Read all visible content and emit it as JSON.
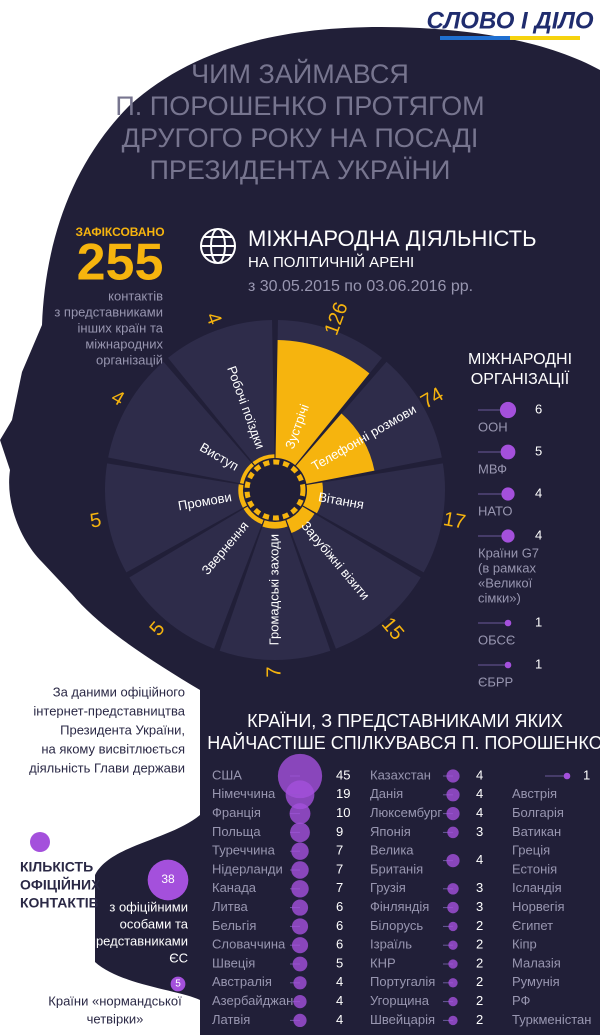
{
  "header": {
    "logo": "СЛОВО І ДІЛО",
    "title": [
      "ЧИМ ЗАЙМАВСЯ",
      "П. ПОРОШЕНКО ПРОТЯГОМ",
      "ДРУГОГО РОКУ НА ПОСАДІ",
      "ПРЕЗИДЕНТА УКРАЇНИ"
    ]
  },
  "summary": {
    "label": "ЗАФІКСОВАНО",
    "total": 255,
    "description": [
      "контактів",
      "з представниками",
      "інших країн та",
      "міжнародних",
      "організацій"
    ]
  },
  "chart_data": [
    {
      "type": "radial-bar",
      "title": "МІЖНАРОДНА ДІЯЛЬНІСТЬ",
      "subtitle": "НА ПОЛІТИЧНІЙ АРЕНІ",
      "period": "з 30.05.2015 по 03.06.2016 рр.",
      "categories": [
        "Зустрічі",
        "Телефонні розмови",
        "Вітання",
        "Зарубіжні візити",
        "Громадські заходи",
        "Звернення",
        "Промови",
        "Виступ",
        "Робочі поїздки"
      ],
      "values": [
        126,
        74,
        17,
        15,
        7,
        5,
        5,
        4,
        4
      ],
      "color": "#f6b40e"
    },
    {
      "type": "bubble-list",
      "title": [
        "МІЖНАРОДНІ",
        "ОРГАНІЗАЦІЇ"
      ],
      "categories": [
        [
          "ООН"
        ],
        [
          "МВФ"
        ],
        [
          "НАТО"
        ],
        [
          "Країни G7",
          "(в рамках",
          "«Великої",
          "сімки»)"
        ],
        [
          "ОБСЄ"
        ],
        [
          "ЄБРР"
        ]
      ],
      "values": [
        6,
        5,
        4,
        4,
        1,
        1
      ],
      "color": "#a450dc"
    },
    {
      "type": "bubble-columns",
      "title": [
        "КРАЇНИ, З ПРЕДСТАВНИКАМИ ЯКИХ",
        "НАЙЧАСТІШЕ СПІЛКУВАВСЯ П. ПОРОШЕНКО"
      ],
      "color": "#a450dc",
      "columns": [
        {
          "categories": [
            "США",
            "Німеччина",
            "Франція",
            "Польща",
            "Туреччина",
            "Нідерланди",
            "Канада",
            "Литва",
            "Бельгія",
            "Словаччина",
            "Швеція",
            "Австралія",
            "Азербайджан",
            "Латвія"
          ],
          "values": [
            45,
            19,
            10,
            9,
            7,
            7,
            7,
            6,
            6,
            6,
            5,
            4,
            4,
            4
          ]
        },
        {
          "categories": [
            "Казахстан",
            "Данія",
            "Люксембург",
            "Японія",
            [
              "Велика",
              "Британія"
            ],
            "Грузія",
            "Фінляндія",
            "Білорусь",
            "Ізраїль",
            "КНР",
            "Португалія",
            "Угорщина",
            "Швейцарія"
          ],
          "values": [
            4,
            4,
            4,
            3,
            4,
            3,
            3,
            2,
            2,
            2,
            2,
            2,
            2
          ]
        },
        {
          "value": 1,
          "categories": [
            "Австрія",
            "Болгарія",
            "Ватикан",
            "Греція",
            "Естонія",
            "Ісландія",
            "Норвегія",
            "Єгипет",
            "Кіпр",
            "Малазія",
            "Румунія",
            "РФ",
            "Туркменістан"
          ]
        }
      ]
    }
  ],
  "source": [
    "За даними офіційного",
    "інтернет-представництва",
    "Президента України,",
    "на якому висвітлюється",
    "діяльність Глави держави"
  ],
  "legend": {
    "title": [
      "КІЛЬКІСТЬ",
      "ОФІЦІЙНИХ",
      "КОНТАКТІВ"
    ],
    "items": [
      {
        "value": 38,
        "label": [
          "з офіційними",
          "особами та",
          "представниками",
          "ЄС"
        ]
      },
      {
        "value": 5,
        "label": [
          "Країни «нормандської",
          "четвірки»"
        ]
      }
    ]
  }
}
